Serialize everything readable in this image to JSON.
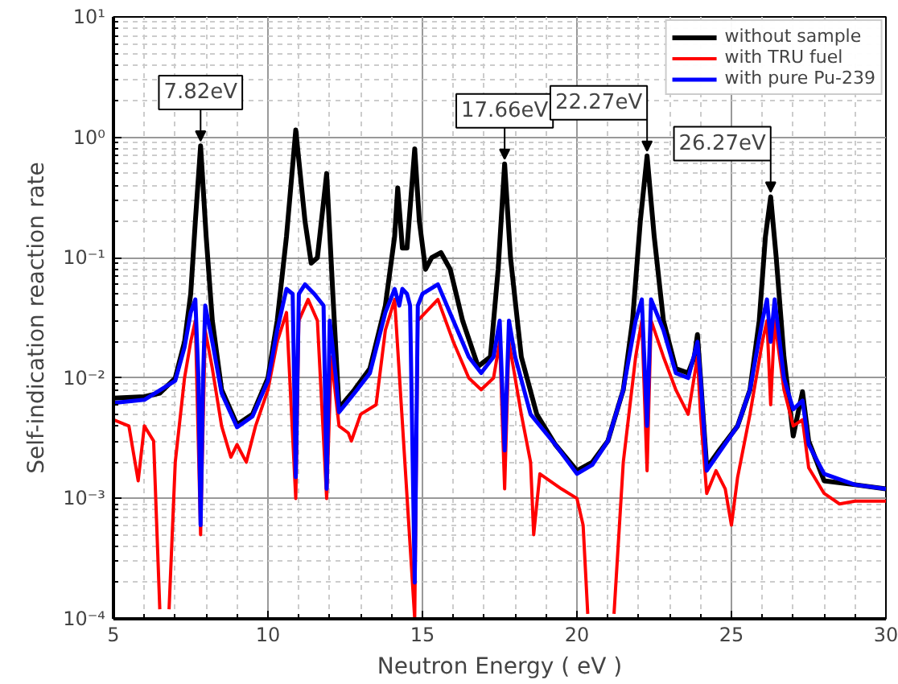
{
  "chart_data": {
    "type": "line",
    "xlabel": "Neutron Energy ( eV )",
    "ylabel": "Self-indication reaction rate",
    "log": "y",
    "grid": true,
    "legend": "top right",
    "line_style": "solid",
    "marker": "none",
    "xlim": [
      5,
      30
    ],
    "xticks": [
      5,
      10,
      15,
      20,
      25,
      30
    ],
    "ylim": [
      0.0001,
      10
    ],
    "yticks": [
      {
        "value": 0.0001,
        "label": "10⁻⁴"
      },
      {
        "value": 0.001,
        "label": "10⁻³"
      },
      {
        "value": 0.01,
        "label": "10⁻²"
      },
      {
        "value": 0.1,
        "label": "10⁻¹"
      },
      {
        "value": 1,
        "label": "10⁰"
      },
      {
        "value": 10,
        "label": "10¹"
      }
    ],
    "series": [
      {
        "name": "without sample",
        "color": "#000000",
        "x": [
          5,
          6,
          6.5,
          7,
          7.3,
          7.5,
          7.65,
          7.82,
          8.0,
          8.2,
          8.5,
          9.0,
          9.5,
          10,
          10.3,
          10.6,
          10.9,
          11.2,
          11.4,
          11.6,
          11.9,
          12.1,
          12.3,
          12.8,
          13.3,
          13.8,
          14.1,
          14.2,
          14.35,
          14.5,
          14.75,
          14.9,
          15.1,
          15.3,
          15.6,
          15.9,
          16.3,
          16.8,
          17.2,
          17.45,
          17.66,
          17.85,
          18.2,
          18.7,
          19.3,
          20,
          20.5,
          21,
          21.5,
          21.8,
          22.05,
          22.27,
          22.5,
          22.8,
          23.2,
          23.6,
          23.8,
          23.9,
          24.0,
          24.2,
          24.6,
          25.2,
          25.6,
          25.9,
          26.1,
          26.27,
          26.45,
          26.7,
          27.0,
          27.3,
          27.5,
          28,
          29,
          30
        ],
        "values": [
          0.0068,
          0.007,
          0.0075,
          0.01,
          0.02,
          0.05,
          0.2,
          0.85,
          0.15,
          0.03,
          0.008,
          0.0041,
          0.005,
          0.01,
          0.03,
          0.15,
          1.15,
          0.2,
          0.09,
          0.1,
          0.5,
          0.05,
          0.0056,
          0.008,
          0.012,
          0.04,
          0.15,
          0.38,
          0.12,
          0.12,
          0.8,
          0.2,
          0.08,
          0.1,
          0.11,
          0.08,
          0.03,
          0.0125,
          0.015,
          0.08,
          0.6,
          0.1,
          0.015,
          0.005,
          0.0028,
          0.0017,
          0.002,
          0.003,
          0.008,
          0.03,
          0.2,
          0.7,
          0.15,
          0.03,
          0.012,
          0.011,
          0.015,
          0.023,
          0.01,
          0.0018,
          0.0025,
          0.004,
          0.008,
          0.03,
          0.15,
          0.32,
          0.1,
          0.015,
          0.0033,
          0.0077,
          0.003,
          0.0014,
          0.0013,
          0.0012
        ]
      },
      {
        "name": "with TRU fuel",
        "color": "#ff0000",
        "x": [
          5,
          5.5,
          5.8,
          6.0,
          6.3,
          6.5,
          6.65,
          6.8,
          7.0,
          7.3,
          7.5,
          7.65,
          7.82,
          7.97,
          8.2,
          8.5,
          8.8,
          9.0,
          9.3,
          9.6,
          10,
          10.3,
          10.6,
          10.9,
          11.0,
          11.3,
          11.6,
          11.9,
          12.05,
          12.3,
          12.6,
          12.7,
          13.0,
          13.5,
          13.8,
          14.1,
          14.75,
          14.85,
          15.5,
          16,
          16.5,
          16.9,
          17.3,
          17.5,
          17.66,
          17.8,
          18.2,
          18.5,
          18.6,
          18.8,
          19.5,
          20.0,
          20.2,
          20.35,
          20.7,
          21.2,
          21.5,
          21.9,
          22.1,
          22.27,
          22.4,
          22.8,
          23.2,
          23.6,
          23.9,
          24.0,
          24.2,
          24.5,
          24.8,
          25.0,
          25.2,
          25.6,
          26.0,
          26.15,
          26.27,
          26.4,
          26.7,
          27.0,
          27.3,
          27.5,
          28,
          28.5,
          29,
          30
        ],
        "values": [
          0.0045,
          0.004,
          0.0014,
          0.004,
          0.003,
          0.00012,
          null,
          0.00012,
          0.002,
          0.01,
          0.02,
          0.03,
          0.0005,
          0.025,
          0.012,
          0.004,
          0.0022,
          0.0028,
          0.002,
          0.004,
          0.008,
          0.02,
          0.035,
          0.001,
          0.03,
          0.045,
          0.03,
          0.001,
          0.015,
          0.004,
          0.0035,
          0.003,
          0.005,
          0.006,
          0.025,
          0.045,
          0.0001,
          0.03,
          0.045,
          0.02,
          0.01,
          0.008,
          0.01,
          0.02,
          0.0012,
          0.02,
          0.005,
          0.002,
          0.0005,
          0.0016,
          0.0012,
          0.001,
          0.0006,
          0.00011,
          null,
          0.00011,
          0.002,
          0.015,
          0.03,
          0.0017,
          0.03,
          0.015,
          0.008,
          0.005,
          0.015,
          0.005,
          0.0011,
          0.0017,
          0.0012,
          0.0006,
          0.0015,
          0.005,
          0.02,
          0.03,
          0.006,
          0.03,
          0.008,
          0.004,
          0.0045,
          0.0018,
          0.0011,
          0.0009,
          0.00095,
          0.00095
        ]
      },
      {
        "name": "with pure Pu-239",
        "color": "#0000ff",
        "x": [
          5,
          6,
          7,
          7.3,
          7.5,
          7.65,
          7.75,
          7.82,
          7.9,
          7.97,
          8.2,
          8.5,
          9,
          9.5,
          10,
          10.3,
          10.6,
          10.8,
          10.9,
          11.0,
          11.2,
          11.5,
          11.8,
          11.9,
          12.0,
          12.2,
          12.3,
          12.8,
          13.3,
          13.8,
          14.1,
          14.25,
          14.35,
          14.5,
          14.6,
          14.75,
          14.85,
          15.0,
          15.5,
          16,
          16.5,
          16.9,
          17.3,
          17.5,
          17.66,
          17.8,
          18.0,
          18.5,
          19.3,
          20,
          20.5,
          21,
          21.5,
          21.9,
          22.1,
          22.27,
          22.4,
          22.8,
          23.2,
          23.6,
          23.9,
          24.0,
          24.2,
          24.6,
          25.2,
          25.6,
          26.0,
          26.15,
          26.27,
          26.4,
          26.7,
          27.0,
          27.3,
          27.5,
          28,
          29,
          30
        ],
        "values": [
          0.0062,
          0.0066,
          0.0095,
          0.018,
          0.035,
          0.045,
          0.01,
          0.0006,
          0.01,
          0.04,
          0.02,
          0.0075,
          0.0039,
          0.0048,
          0.0095,
          0.025,
          0.055,
          0.05,
          0.0015,
          0.05,
          0.06,
          0.05,
          0.04,
          0.0012,
          0.03,
          0.01,
          0.0052,
          0.0075,
          0.011,
          0.035,
          0.055,
          0.04,
          0.055,
          0.05,
          0.04,
          0.0002,
          0.04,
          0.05,
          0.06,
          0.03,
          0.015,
          0.011,
          0.015,
          0.03,
          0.0025,
          0.03,
          0.015,
          0.005,
          0.0028,
          0.0016,
          0.0019,
          0.003,
          0.008,
          0.03,
          0.045,
          0.004,
          0.045,
          0.025,
          0.011,
          0.01,
          0.02,
          0.01,
          0.0017,
          0.0024,
          0.004,
          0.008,
          0.03,
          0.045,
          0.02,
          0.045,
          0.01,
          0.0055,
          0.0065,
          0.0028,
          0.0016,
          0.0013,
          0.0012
        ]
      }
    ],
    "annotations": [
      {
        "text": "7.82eV",
        "x": 7.82,
        "y": 0.85
      },
      {
        "text": "17.66eV",
        "x": 17.66,
        "y": 0.6
      },
      {
        "text": "22.27eV",
        "x": 22.27,
        "y": 0.7
      },
      {
        "text": "26.27eV",
        "x": 26.27,
        "y": 0.32
      }
    ]
  }
}
